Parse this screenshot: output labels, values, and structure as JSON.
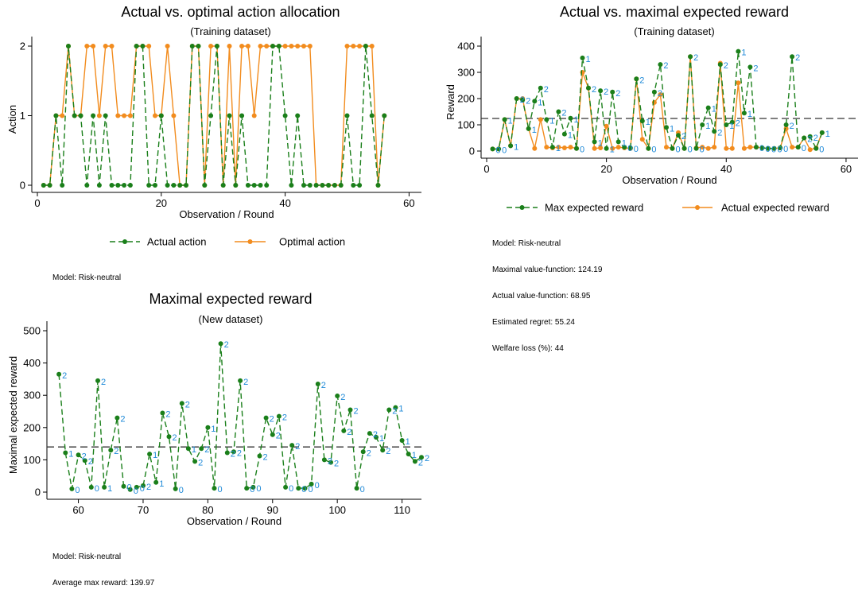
{
  "colors": {
    "green": "#1a7f1a",
    "orange": "#f28c1e",
    "label_blue": "#1f8ad8",
    "refline": "#333333"
  },
  "chart_data": [
    {
      "type": "line",
      "title": "Actual vs. optimal action allocation",
      "subtitle": "(Training dataset)",
      "xlabel": "Observation / Round",
      "ylabel": "Action",
      "xlim": [
        0,
        62
      ],
      "ylim": [
        0,
        2
      ],
      "xticks": [
        0,
        20,
        40,
        60
      ],
      "yticks": [
        0,
        1,
        2
      ],
      "grid": false,
      "legend_position": "bottom",
      "x_start": 1,
      "series": [
        {
          "name": "Actual action",
          "style": "dashed",
          "color": "green",
          "values": [
            0,
            0,
            1,
            0,
            2,
            1,
            1,
            0,
            1,
            0,
            1,
            0,
            0,
            0,
            0,
            2,
            2,
            0,
            0,
            1,
            0,
            0,
            0,
            0,
            2,
            2,
            0,
            1,
            2,
            0,
            1,
            0,
            1,
            0,
            0,
            0,
            0,
            2,
            2,
            1,
            0,
            1,
            0,
            0,
            0,
            0,
            0,
            0,
            0,
            1,
            0,
            0,
            2,
            1,
            0,
            1
          ]
        },
        {
          "name": "Optimal action",
          "style": "solid",
          "color": "orange",
          "values": [
            0,
            0,
            1,
            1,
            2,
            1,
            1,
            2,
            2,
            1,
            2,
            2,
            1,
            1,
            1,
            2,
            2,
            2,
            1,
            1,
            2,
            1,
            0,
            0,
            2,
            2,
            0,
            2,
            2,
            0,
            2,
            0,
            2,
            2,
            1,
            2,
            2,
            2,
            2,
            2,
            2,
            2,
            2,
            2,
            0,
            0,
            0,
            0,
            0,
            2,
            2,
            2,
            2,
            2,
            0,
            1
          ]
        }
      ],
      "notes": [
        "Model: Risk-neutral"
      ]
    },
    {
      "type": "line",
      "title": "Actual vs. maximal expected reward",
      "subtitle": "(Training dataset)",
      "xlabel": "Observation / Round",
      "ylabel": "Reward",
      "xlim": [
        0,
        62
      ],
      "ylim": [
        0,
        400
      ],
      "xticks": [
        0,
        20,
        40,
        60
      ],
      "yticks": [
        0,
        100,
        200,
        300,
        400
      ],
      "grid": false,
      "legend_position": "bottom",
      "x_start": 1,
      "reference_line": 124.19,
      "series": [
        {
          "name": "Max expected reward",
          "style": "dashed",
          "color": "green",
          "values": [
            8,
            8,
            120,
            20,
            200,
            195,
            85,
            190,
            240,
            120,
            15,
            150,
            65,
            125,
            10,
            355,
            240,
            35,
            230,
            10,
            225,
            35,
            15,
            12,
            275,
            115,
            10,
            225,
            330,
            90,
            10,
            60,
            10,
            360,
            10,
            100,
            165,
            75,
            330,
            100,
            110,
            380,
            145,
            320,
            15,
            12,
            10,
            10,
            12,
            100,
            360,
            15,
            50,
            55,
            10,
            70
          ],
          "point_labels": [
            "0",
            "0",
            "1",
            "1",
            "2",
            "2",
            "1",
            "1",
            "2",
            "1",
            "1",
            "2",
            "1",
            "1",
            "0",
            "1",
            "2",
            "1",
            "2",
            "1",
            "2",
            "1",
            "0",
            "0",
            "2",
            "1",
            "0",
            "2",
            "2",
            "1",
            "0",
            "2",
            "0",
            "2",
            "0",
            "1",
            "1",
            "2",
            "2",
            "1",
            "2",
            "1",
            "1",
            "2",
            "0",
            "0",
            "0",
            "0",
            "0",
            "2",
            "2",
            "0",
            "2",
            "2",
            "0",
            "1"
          ]
        },
        {
          "name": "Actual expected reward",
          "style": "solid",
          "color": "orange",
          "values": [
            8,
            8,
            120,
            20,
            200,
            200,
            85,
            10,
            120,
            15,
            12,
            15,
            12,
            15,
            10,
            300,
            240,
            10,
            12,
            95,
            10,
            15,
            12,
            10,
            275,
            45,
            10,
            185,
            215,
            15,
            10,
            70,
            10,
            360,
            12,
            15,
            10,
            15,
            335,
            10,
            10,
            260,
            10,
            15,
            15,
            12,
            10,
            10,
            12,
            85,
            15,
            15,
            50,
            5,
            12,
            70
          ]
        }
      ],
      "notes": [
        "Model: Risk-neutral",
        "Maximal value-function: 124.19",
        "Actual value-function: 68.95",
        "Estimated regret: 55.24",
        "Welfare loss (%): 44"
      ]
    },
    {
      "type": "line",
      "title": "Maximal expected reward",
      "subtitle": "(New dataset)",
      "xlabel": "Observation / Round",
      "ylabel": "Maximal expected reward",
      "xlim": [
        56,
        113
      ],
      "ylim": [
        0,
        500
      ],
      "xticks": [
        60,
        70,
        80,
        90,
        100,
        110
      ],
      "yticks": [
        0,
        100,
        200,
        300,
        400,
        500
      ],
      "grid": false,
      "x_start": 57,
      "reference_line": 139.97,
      "series": [
        {
          "name": "",
          "style": "dashed",
          "color": "green",
          "values": [
            365,
            122,
            10,
            115,
            98,
            15,
            345,
            15,
            130,
            230,
            18,
            8,
            15,
            20,
            118,
            30,
            245,
            172,
            10,
            275,
            135,
            95,
            135,
            200,
            12,
            460,
            122,
            125,
            345,
            12,
            15,
            112,
            230,
            178,
            235,
            15,
            145,
            12,
            12,
            25,
            335,
            100,
            92,
            298,
            190,
            255,
            12,
            125,
            182,
            170,
            130,
            255,
            262,
            160,
            118,
            95,
            108
          ],
          "point_labels": [
            "2",
            "1",
            "0",
            "2",
            "2",
            "0",
            "2",
            "1",
            "2",
            "2",
            "0",
            "0",
            "0",
            "2",
            "1",
            "1",
            "2",
            "2",
            "0",
            "2",
            "1",
            "2",
            "2",
            "1",
            "0",
            "2",
            "2",
            "2",
            "2",
            "0",
            "0",
            "2",
            "2",
            "2",
            "2",
            "0",
            "2",
            "0",
            "0",
            "0",
            "2",
            "2",
            "2",
            "2",
            "2",
            "2",
            "0",
            "2",
            "2",
            "1",
            "2",
            "2",
            "1",
            "1",
            "1",
            "2",
            "2"
          ]
        }
      ],
      "notes": [
        "Model: Risk-neutral",
        "Average max reward: 139.97"
      ]
    }
  ]
}
